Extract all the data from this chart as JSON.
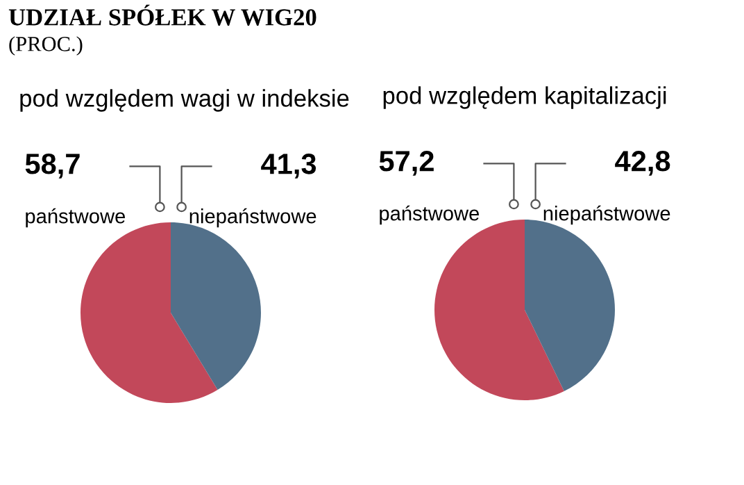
{
  "chart_data": [
    {
      "type": "pie",
      "title": "pod względem wagi w indeksie",
      "annotations": [
        "UDZIAŁ SPÓŁEK W WIG20",
        "(PROC.)"
      ],
      "categories": [
        "państwowe",
        "niepaństwowe"
      ],
      "values": [
        58.7,
        41.3
      ],
      "value_labels": [
        "58,7",
        "41,3"
      ],
      "colors": [
        "#c2485a",
        "#52708a"
      ]
    },
    {
      "type": "pie",
      "title": "pod względem kapitalizacji",
      "categories": [
        "państwowe",
        "niepaństwowe"
      ],
      "values": [
        57.2,
        42.8
      ],
      "value_labels": [
        "57,2",
        "42,8"
      ],
      "colors": [
        "#c2485a",
        "#52708a"
      ]
    }
  ]
}
